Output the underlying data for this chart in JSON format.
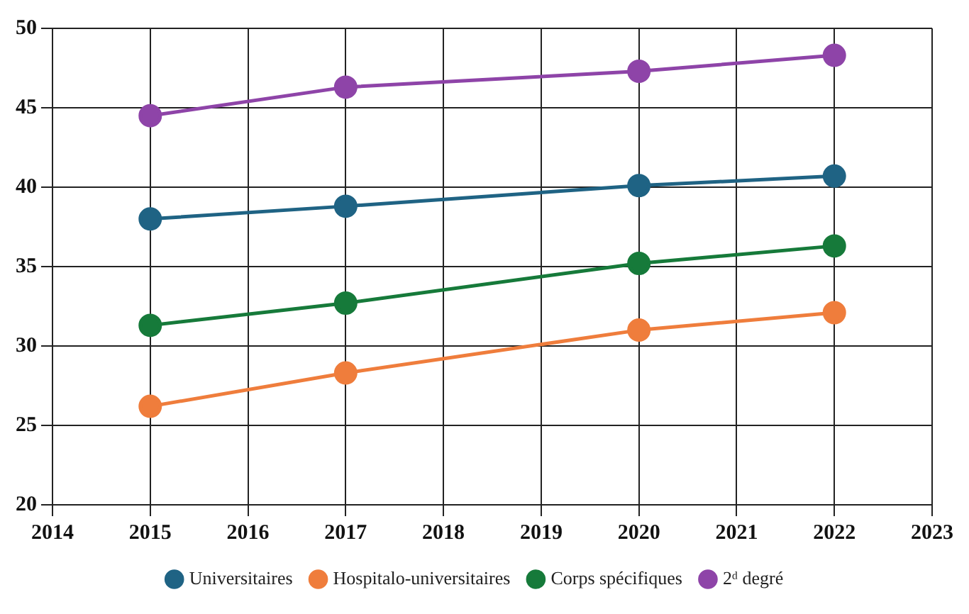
{
  "chart_data": {
    "type": "line",
    "x": [
      2015,
      2017,
      2020,
      2022
    ],
    "series": [
      {
        "name": "Universitaires",
        "color": "#1f6384",
        "values": [
          38.0,
          38.8,
          40.1,
          40.7
        ]
      },
      {
        "name": "Hospitalo-universitaires",
        "color": "#ef7d3c",
        "values": [
          26.2,
          28.3,
          31.0,
          32.1
        ]
      },
      {
        "name": "Corps spécifiques",
        "color": "#167a3a",
        "values": [
          31.3,
          32.7,
          35.2,
          36.3
        ]
      },
      {
        "name": "2ᵈ degré",
        "color": "#8e44a8",
        "values": [
          44.5,
          46.3,
          47.3,
          48.3
        ]
      }
    ],
    "xlim": [
      2014,
      2023
    ],
    "xticks": [
      2014,
      2015,
      2016,
      2017,
      2018,
      2019,
      2020,
      2021,
      2022,
      2023
    ],
    "ylim": [
      20,
      50
    ],
    "yticks": [
      20,
      25,
      30,
      35,
      40,
      45,
      50
    ],
    "grid": true,
    "legend": "bottom",
    "marker": "circle",
    "line_style": "solid"
  }
}
